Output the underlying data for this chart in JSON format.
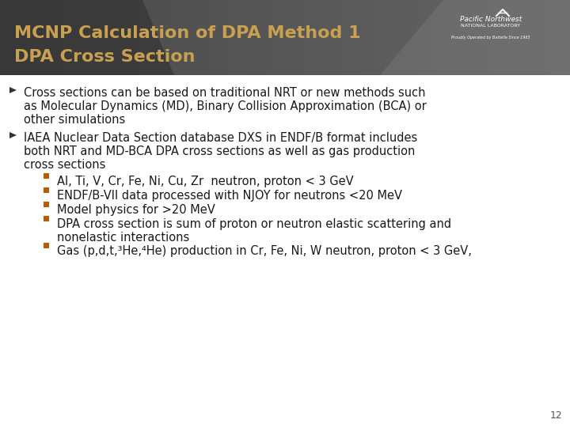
{
  "title_line1": "MCNP Calculation of DPA Method 1",
  "title_line2": "DPA Cross Section",
  "title_color": "#C8A050",
  "header_bg_color_left": "#4A4A4A",
  "header_bg_color_right": "#6A6A6A",
  "body_bg_color": "#F5F5F5",
  "bullet_arrow_color": "#333333",
  "sub_bullet_color": "#B85C00",
  "text_color": "#222222",
  "page_number": "12",
  "bullet1_lines": [
    "Cross sections can be based on traditional NRT or new methods such",
    "as Molecular Dynamics (MD), Binary Collision Approximation (BCA) or",
    "other simulations"
  ],
  "bullet2_lines": [
    "IAEA Nuclear Data Section database DXS in ENDF/B format includes",
    "both NRT and MD-BCA DPA cross sections as well as gas production",
    "cross sections"
  ],
  "sub_bullets": [
    "Al, Ti, V, Cr, Fe, Ni, Cu, Zr  neutron, proton < 3 GeV",
    "ENDF/B-VII data processed with NJOY for neutrons <20 MeV",
    "Model physics for >20 MeV",
    "DPA cross section is sum of proton or neutron elastic scattering and\nnonelastic interactions",
    "Gas (p,d,t,³He,⁴He) production in Cr, Fe, Ni, W neutron, proton < 3 GeV,"
  ]
}
